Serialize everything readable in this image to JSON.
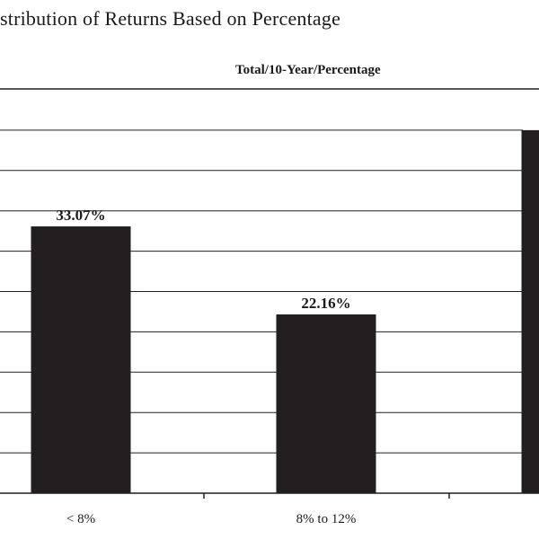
{
  "chart_data": {
    "type": "bar",
    "title": "stribution of Returns Based on Percentage",
    "subtitle": "Total/10-Year/Percentage",
    "categories": [
      "< 8%",
      "8% to 12%",
      ""
    ],
    "values": [
      33.07,
      22.16,
      45
    ],
    "data_labels": [
      "33.07%",
      "22.16%",
      ""
    ],
    "ylim": [
      0,
      50
    ],
    "grid": true,
    "colors": {
      "bar": "#231f20",
      "grid": "#231f20"
    }
  }
}
